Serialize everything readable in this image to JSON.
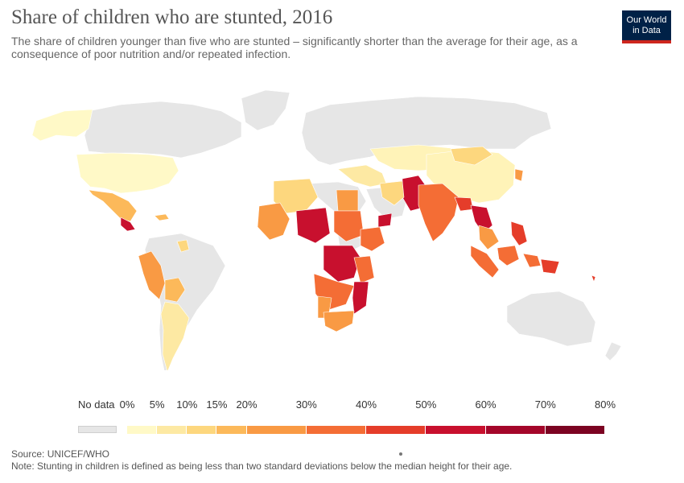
{
  "header": {
    "title": "Share of children who are stunted, 2016",
    "subtitle": "The share of children younger than five who are stunted – significantly shorter than the average for their age, as a consequence of poor nutrition and/or repeated infection.",
    "logo_line1": "Our World",
    "logo_line2": "in Data"
  },
  "legend": {
    "no_data_label": "No data",
    "no_data_color": "#e6e6e6",
    "bins": [
      {
        "label": "0%",
        "value": 0,
        "color": "#fff9c7"
      },
      {
        "label": "5%",
        "value": 5,
        "color": "#fde9a3"
      },
      {
        "label": "10%",
        "value": 10,
        "color": "#fdd77e"
      },
      {
        "label": "15%",
        "value": 15,
        "color": "#fcb95a"
      },
      {
        "label": "20%",
        "value": 20,
        "color": "#f99a44"
      },
      {
        "label": "30%",
        "value": 30,
        "color": "#f46d35"
      },
      {
        "label": "40%",
        "value": 40,
        "color": "#e53d2a"
      },
      {
        "label": "50%",
        "value": 50,
        "color": "#c8102e"
      },
      {
        "label": "60%",
        "value": 60,
        "color": "#a4062a"
      },
      {
        "label": "70%",
        "value": 70,
        "color": "#7c0322"
      },
      {
        "label": "80%",
        "value": 80,
        "color": null
      }
    ]
  },
  "footer": {
    "source": "Source: UNICEF/WHO",
    "note": "Note: Stunting in children is defined as being less than two standard deviations below the median height for their age."
  }
}
